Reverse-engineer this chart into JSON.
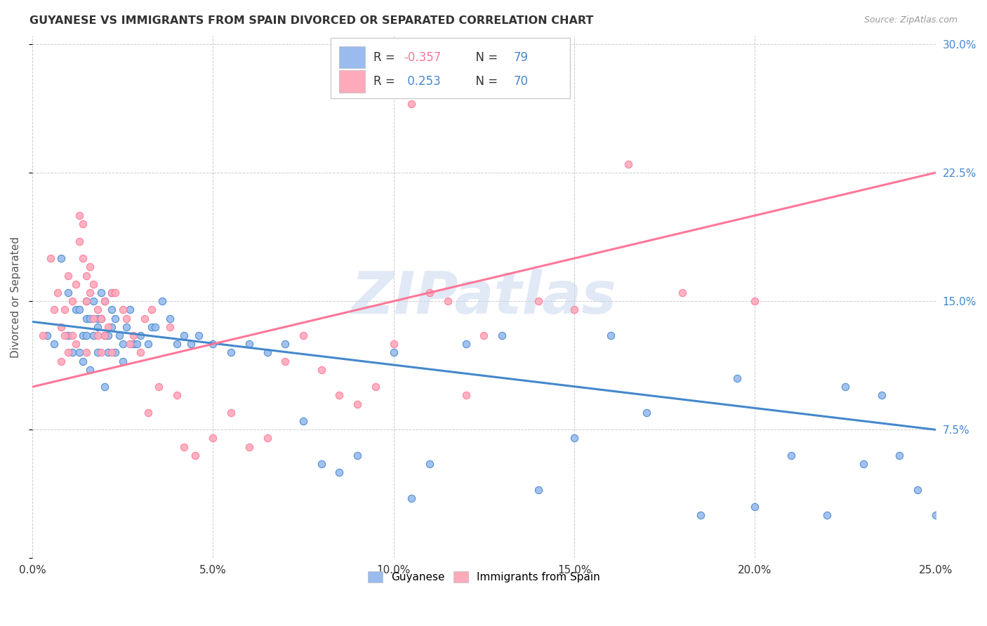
{
  "title": "GUYANESE VS IMMIGRANTS FROM SPAIN DIVORCED OR SEPARATED CORRELATION CHART",
  "source": "Source: ZipAtlas.com",
  "ylabel": "Divorced or Separated",
  "xlim": [
    0.0,
    0.25
  ],
  "ylim": [
    0.0,
    0.305
  ],
  "xticks": [
    0.0,
    0.05,
    0.1,
    0.15,
    0.2,
    0.25
  ],
  "yticks": [
    0.0,
    0.075,
    0.15,
    0.225,
    0.3
  ],
  "ytick_labels_right": [
    "7.5%",
    "15.0%",
    "22.5%",
    "30.0%"
  ],
  "xtick_labels": [
    "0.0%",
    "5.0%",
    "10.0%",
    "15.0%",
    "20.0%",
    "25.0%"
  ],
  "color_blue": "#99BBEE",
  "color_pink": "#FFAABB",
  "trendline_blue": "#4488CC",
  "trendline_pink": "#FF7799",
  "watermark": "ZIPatlas",
  "legend_labels": [
    "Guyanese",
    "Immigrants from Spain"
  ],
  "blue_scatter_x": [
    0.004,
    0.006,
    0.008,
    0.01,
    0.01,
    0.011,
    0.012,
    0.013,
    0.013,
    0.014,
    0.014,
    0.015,
    0.015,
    0.015,
    0.016,
    0.016,
    0.017,
    0.017,
    0.018,
    0.018,
    0.018,
    0.019,
    0.019,
    0.02,
    0.02,
    0.02,
    0.021,
    0.021,
    0.022,
    0.022,
    0.022,
    0.023,
    0.023,
    0.024,
    0.025,
    0.025,
    0.026,
    0.027,
    0.028,
    0.029,
    0.03,
    0.032,
    0.033,
    0.034,
    0.036,
    0.038,
    0.04,
    0.042,
    0.044,
    0.046,
    0.05,
    0.055,
    0.06,
    0.065,
    0.07,
    0.075,
    0.08,
    0.085,
    0.09,
    0.1,
    0.105,
    0.11,
    0.12,
    0.13,
    0.14,
    0.15,
    0.16,
    0.17,
    0.185,
    0.195,
    0.2,
    0.21,
    0.22,
    0.225,
    0.23,
    0.235,
    0.24,
    0.245,
    0.25
  ],
  "blue_scatter_y": [
    0.13,
    0.125,
    0.175,
    0.13,
    0.155,
    0.12,
    0.145,
    0.145,
    0.12,
    0.13,
    0.115,
    0.13,
    0.15,
    0.14,
    0.11,
    0.14,
    0.13,
    0.15,
    0.12,
    0.14,
    0.135,
    0.14,
    0.155,
    0.13,
    0.15,
    0.1,
    0.12,
    0.13,
    0.135,
    0.155,
    0.145,
    0.12,
    0.14,
    0.13,
    0.115,
    0.125,
    0.135,
    0.145,
    0.125,
    0.125,
    0.13,
    0.125,
    0.135,
    0.135,
    0.15,
    0.14,
    0.125,
    0.13,
    0.125,
    0.13,
    0.125,
    0.12,
    0.125,
    0.12,
    0.125,
    0.08,
    0.055,
    0.05,
    0.06,
    0.12,
    0.035,
    0.055,
    0.125,
    0.13,
    0.04,
    0.07,
    0.13,
    0.085,
    0.025,
    0.105,
    0.03,
    0.06,
    0.025,
    0.1,
    0.055,
    0.095,
    0.06,
    0.04,
    0.025
  ],
  "pink_scatter_x": [
    0.003,
    0.005,
    0.006,
    0.007,
    0.008,
    0.008,
    0.009,
    0.009,
    0.01,
    0.01,
    0.011,
    0.011,
    0.012,
    0.012,
    0.013,
    0.013,
    0.014,
    0.014,
    0.015,
    0.015,
    0.015,
    0.016,
    0.016,
    0.017,
    0.017,
    0.018,
    0.018,
    0.019,
    0.019,
    0.02,
    0.02,
    0.021,
    0.022,
    0.022,
    0.023,
    0.025,
    0.026,
    0.027,
    0.028,
    0.03,
    0.031,
    0.032,
    0.033,
    0.035,
    0.038,
    0.04,
    0.042,
    0.045,
    0.05,
    0.055,
    0.06,
    0.065,
    0.07,
    0.075,
    0.08,
    0.085,
    0.09,
    0.095,
    0.1,
    0.105,
    0.11,
    0.115,
    0.12,
    0.125,
    0.13,
    0.14,
    0.15,
    0.165,
    0.18,
    0.2
  ],
  "pink_scatter_y": [
    0.13,
    0.175,
    0.145,
    0.155,
    0.135,
    0.115,
    0.145,
    0.13,
    0.165,
    0.12,
    0.15,
    0.13,
    0.125,
    0.16,
    0.2,
    0.185,
    0.175,
    0.195,
    0.15,
    0.165,
    0.12,
    0.155,
    0.17,
    0.14,
    0.16,
    0.13,
    0.145,
    0.12,
    0.14,
    0.13,
    0.15,
    0.135,
    0.12,
    0.155,
    0.155,
    0.145,
    0.14,
    0.125,
    0.13,
    0.12,
    0.14,
    0.085,
    0.145,
    0.1,
    0.135,
    0.095,
    0.065,
    0.06,
    0.07,
    0.085,
    0.065,
    0.07,
    0.115,
    0.13,
    0.11,
    0.095,
    0.09,
    0.1,
    0.125,
    0.265,
    0.155,
    0.15,
    0.095,
    0.13,
    0.28,
    0.15,
    0.145,
    0.23,
    0.155,
    0.15
  ],
  "blue_trend_x": [
    0.0,
    0.25
  ],
  "blue_trend_y": [
    0.138,
    0.075
  ],
  "pink_trend_x": [
    0.0,
    0.25
  ],
  "pink_trend_y": [
    0.1,
    0.225
  ]
}
